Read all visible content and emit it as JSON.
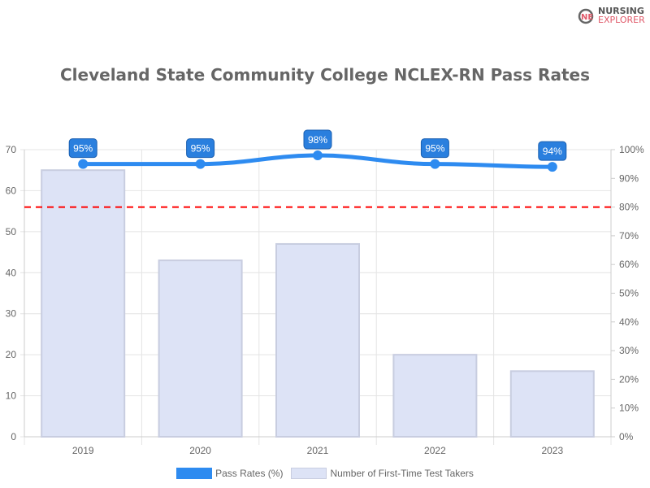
{
  "logo": {
    "line1": "NURSING",
    "line2": "EXPLORER"
  },
  "chart_data": {
    "type": "bar+line",
    "title": "Cleveland State Community College NCLEX-RN Pass Rates",
    "categories": [
      "2019",
      "2020",
      "2021",
      "2022",
      "2023"
    ],
    "series": [
      {
        "name": "Pass Rates (%)",
        "type": "line",
        "axis": "right",
        "values": [
          95,
          95,
          98,
          95,
          94
        ],
        "labels": [
          "95%",
          "95%",
          "98%",
          "95%",
          "94%"
        ],
        "color": "#2e8bf0"
      },
      {
        "name": "Number of First-Time Test Takers",
        "type": "bar",
        "axis": "left",
        "values": [
          65,
          43,
          47,
          20,
          16
        ],
        "color": "#dde3f6"
      }
    ],
    "left_axis": {
      "range": [
        0,
        70
      ],
      "ticks": [
        "0",
        "10",
        "20",
        "30",
        "40",
        "50",
        "60",
        "70"
      ]
    },
    "right_axis": {
      "range": [
        0,
        100
      ],
      "ticks": [
        "0%",
        "10%",
        "20%",
        "30%",
        "40%",
        "50%",
        "60%",
        "70%",
        "80%",
        "90%",
        "100%"
      ]
    },
    "reference_line": {
      "value": 80,
      "axis": "right",
      "color": "#ff0000",
      "style": "dashed"
    },
    "grid": true,
    "legend_position": "bottom"
  }
}
